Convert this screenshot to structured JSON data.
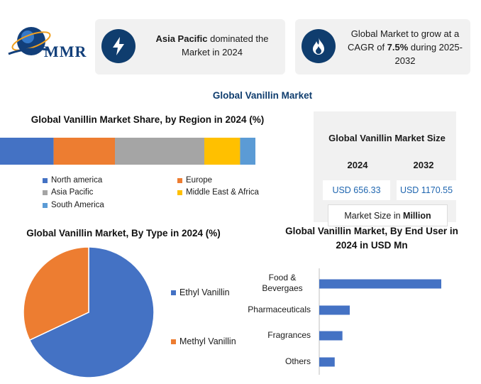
{
  "logo": {
    "text": "MMR"
  },
  "cards": [
    {
      "icon": "lightning-icon",
      "bold": "Asia Pacific",
      "text": " dominated the Market in 2024"
    },
    {
      "icon": "flame-icon",
      "pre": "Global Market to grow at a CAGR of ",
      "bold": "7.5%",
      "post": " during 2025-2032"
    }
  ],
  "main_title": "Global Vanillin Market",
  "colors": {
    "blue": "#4472c4",
    "orange": "#ed7d31",
    "gray": "#a5a5a5",
    "yellow": "#ffc000",
    "lightblue": "#5b9bd5",
    "navy": "#0f3d6e"
  },
  "market_size": {
    "title": "Global Vanillin Market Size",
    "years": [
      "2024",
      "2032"
    ],
    "values": [
      "USD 656.33",
      "USD 1170.55"
    ],
    "note_prefix": "Market Size in ",
    "note_bold": "Million"
  },
  "chart_data": [
    {
      "type": "bar",
      "orientation": "horizontal-stacked",
      "title": "Global Vanillin Market Share, by Region in 2024 (%)",
      "series": [
        {
          "name": "North america",
          "value": 21,
          "color": "#4472c4"
        },
        {
          "name": "Europe",
          "value": 24,
          "color": "#ed7d31"
        },
        {
          "name": "Asia Pacific",
          "value": 35,
          "color": "#a5a5a5"
        },
        {
          "name": "Middle East & Africa",
          "value": 14,
          "color": "#ffc000"
        },
        {
          "name": "South America",
          "value": 6,
          "color": "#5b9bd5"
        }
      ],
      "legend_position": "bottom"
    },
    {
      "type": "pie",
      "title": "Global Vanillin Market, By Type in 2024 (%)",
      "slices": [
        {
          "name": "Ethyl Vanillin",
          "value": 68,
          "color": "#4472c4"
        },
        {
          "name": "Methyl Vanillin",
          "value": 32,
          "color": "#ed7d31"
        }
      ],
      "legend_position": "right"
    },
    {
      "type": "bar",
      "orientation": "horizontal",
      "title": "Global Vanillin Market, By End User in 2024 in USD Mn",
      "categories": [
        "Food & Bevergaes",
        "Pharmaceuticals",
        "Fragrances",
        "Others"
      ],
      "values": [
        300,
        75,
        57,
        38
      ],
      "xlim": [
        0,
        300
      ],
      "color": "#4472c4"
    }
  ]
}
